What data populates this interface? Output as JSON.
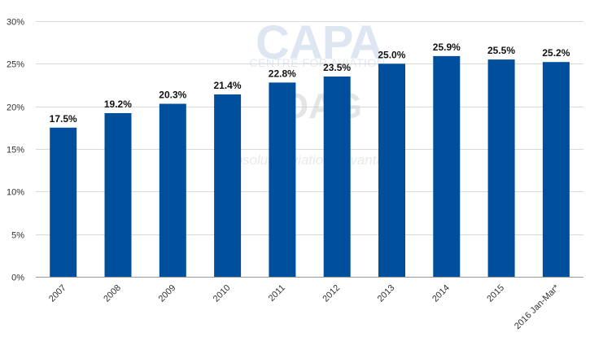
{
  "chart_data": {
    "type": "bar",
    "categories": [
      "2007",
      "2008",
      "2009",
      "2010",
      "2011",
      "2012",
      "2013",
      "2014",
      "2015",
      "2016 Jan-Mar*"
    ],
    "values": [
      17.5,
      19.2,
      20.3,
      21.4,
      22.8,
      23.5,
      25.0,
      25.9,
      25.5,
      25.2
    ],
    "data_labels": [
      "17.5%",
      "19.2%",
      "20.3%",
      "21.4%",
      "22.8%",
      "23.5%",
      "25.0%",
      "25.9%",
      "25.5%",
      "25.2%"
    ],
    "yticks": [
      0,
      5,
      10,
      15,
      20,
      25,
      30
    ],
    "ytick_labels": [
      "0%",
      "5%",
      "10%",
      "15%",
      "20%",
      "25%",
      "30%"
    ],
    "ylim": [
      0,
      30
    ],
    "title": "",
    "xlabel": "",
    "ylabel": "",
    "grid": true,
    "bar_color": "#004f9c"
  },
  "watermark": {
    "brand": "CAPA",
    "brand_sub": "CENTRE FOR AVIATION",
    "partner": "OAG",
    "tagline": "absolute aviation advantage"
  }
}
